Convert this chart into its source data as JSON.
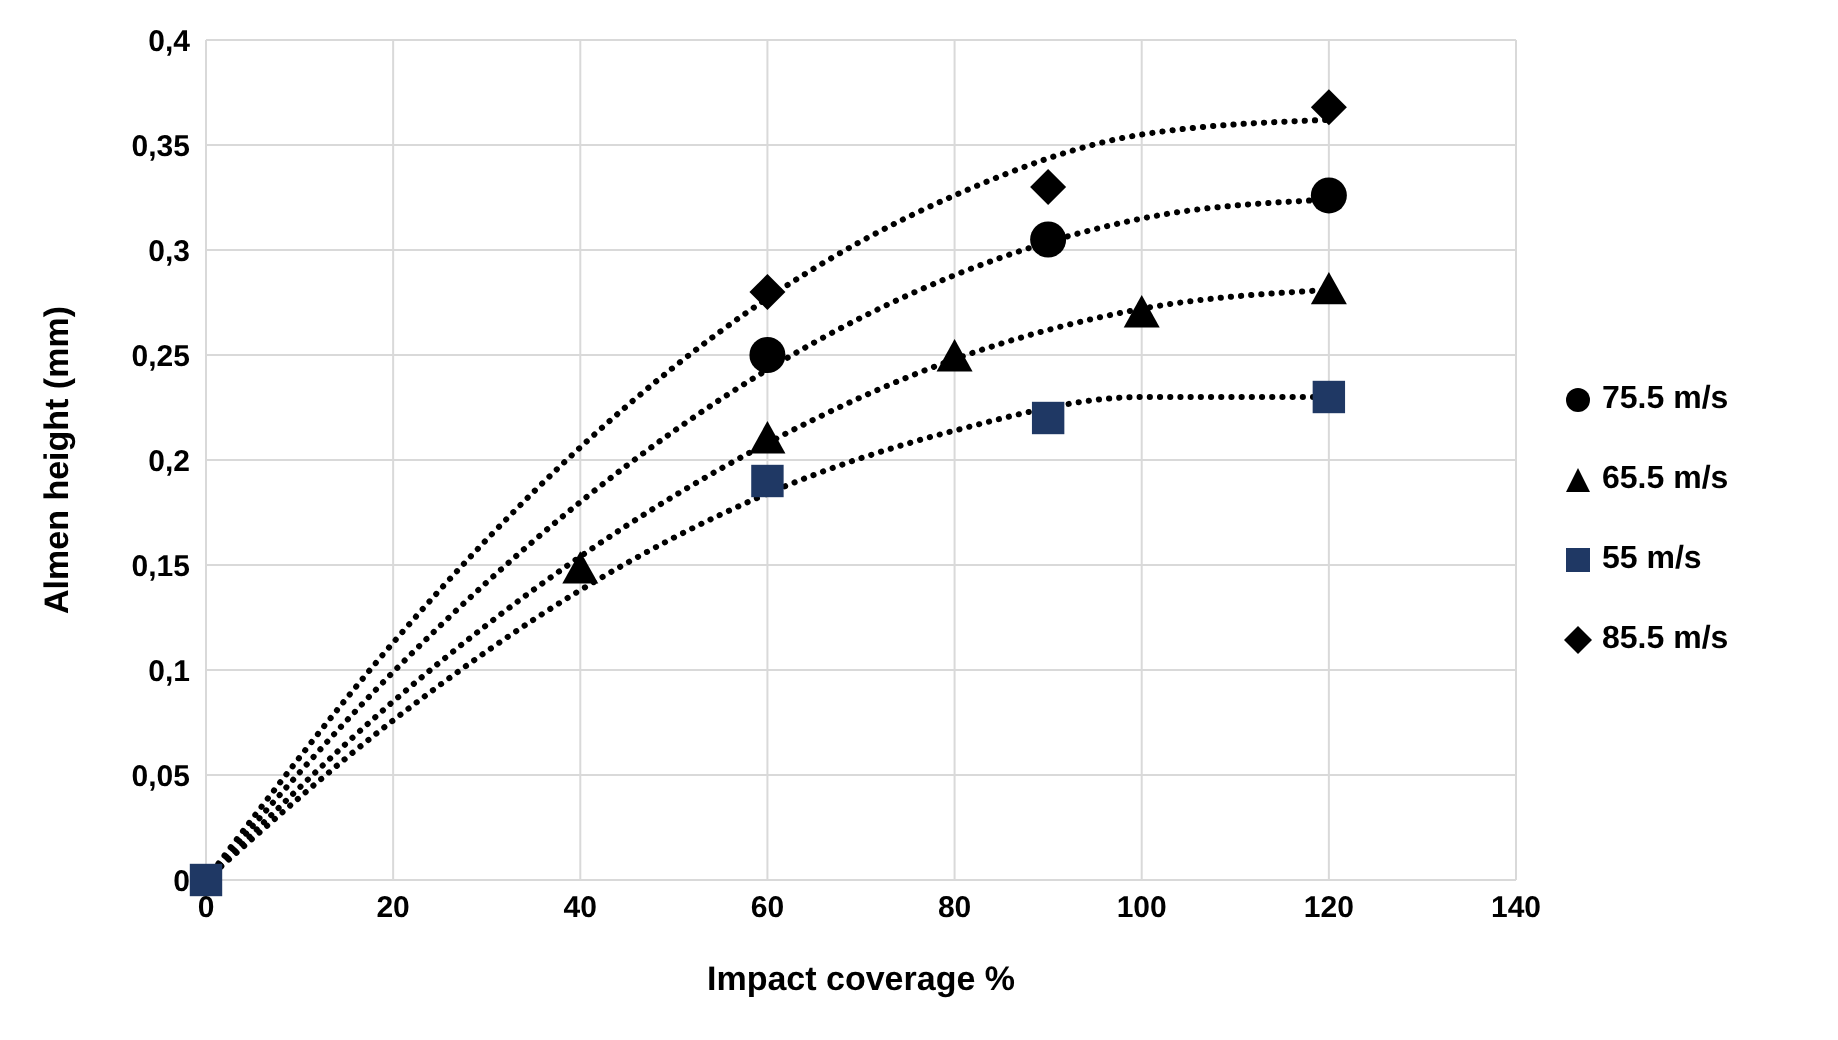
{
  "chart_data": {
    "type": "scatter",
    "xlabel": "Impact coverage %",
    "ylabel": "Almen height (mm)",
    "xlim": [
      0,
      140
    ],
    "xticks": [
      0,
      20,
      40,
      60,
      80,
      100,
      120,
      140
    ],
    "ylim": [
      0,
      0.4
    ],
    "yticks": [
      0,
      {
        "value": 0.05,
        "label": "0,05"
      },
      {
        "value": 0.1,
        "label": "0,1"
      },
      {
        "value": 0.15,
        "label": "0,15"
      },
      {
        "value": 0.2,
        "label": "0,2"
      },
      {
        "value": 0.25,
        "label": "0,25"
      },
      {
        "value": 0.3,
        "label": "0,3"
      },
      {
        "value": 0.35,
        "label": "0,35"
      },
      {
        "value": 0.4,
        "label": "0,4"
      }
    ],
    "grid": true,
    "legend": "right",
    "series": [
      {
        "name": "75.5 m/s",
        "color": "#000000",
        "marker": "circle",
        "x": [
          60,
          90,
          120
        ],
        "values": [
          0.25,
          0.305,
          0.326
        ]
      },
      {
        "name": "65.5 m/s",
        "color": "#000000",
        "marker": "triangle",
        "x": [
          40,
          60,
          80,
          100,
          120
        ],
        "values": [
          0.148,
          0.21,
          0.249,
          0.27,
          0.281
        ]
      },
      {
        "name": "55 m/s",
        "color": "#1f3864",
        "marker": "square",
        "x": [
          0,
          60,
          90,
          120
        ],
        "values": [
          0,
          0.19,
          0.22,
          0.23
        ]
      },
      {
        "name": "85.5 m/s",
        "color": "#000000",
        "marker": "diamond",
        "x": [
          60,
          90,
          120
        ],
        "values": [
          0.28,
          0.33,
          0.368
        ]
      },
      {
        "type": "line",
        "color": "#000000",
        "line_style": "dotted",
        "marker": "none",
        "x": [
          0,
          20,
          40,
          60,
          80,
          100,
          120
        ],
        "values": [
          0,
          0.099,
          0.18,
          0.243,
          0.288,
          0.315,
          0.324
        ]
      },
      {
        "type": "line",
        "color": "#000000",
        "line_style": "dotted",
        "marker": "none",
        "x": [
          0,
          20,
          40,
          60,
          80,
          100,
          120
        ],
        "values": [
          0,
          0.085,
          0.154,
          0.208,
          0.248,
          0.272,
          0.281
        ]
      },
      {
        "type": "line",
        "color": "#000000",
        "line_style": "dotted",
        "marker": "none",
        "x": [
          0,
          20,
          40,
          60,
          80,
          100,
          120
        ],
        "values": [
          0,
          0.076,
          0.138,
          0.184,
          0.214,
          0.23,
          0.23
        ]
      },
      {
        "type": "line",
        "color": "#000000",
        "line_style": "dotted",
        "marker": "none",
        "x": [
          0,
          20,
          40,
          60,
          80,
          100,
          120
        ],
        "values": [
          0,
          0.113,
          0.206,
          0.277,
          0.326,
          0.355,
          0.362
        ]
      }
    ]
  }
}
